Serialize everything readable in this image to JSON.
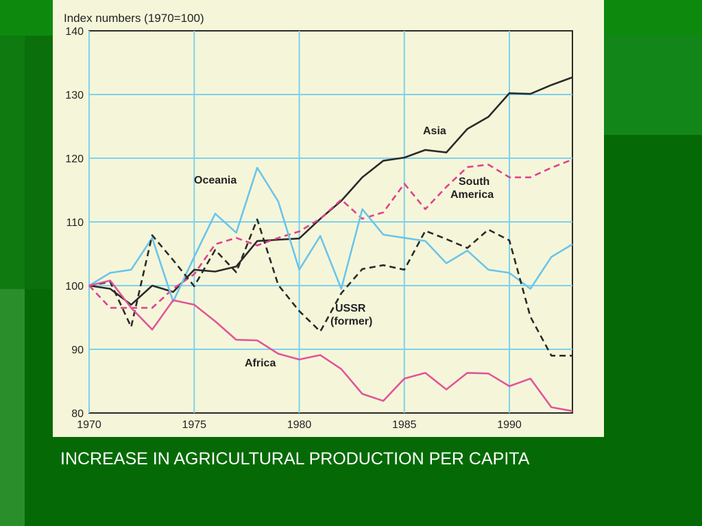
{
  "caption": "INCREASE IN AGRICULTURAL PRODUCTION PER CAPITA",
  "colors": {
    "background": "#0b6b0b",
    "panel": "#f5f6d9",
    "grid": "#7fd0ee",
    "asia": "#2a2a2a",
    "south_america": "#e0408e",
    "oceania": "#6cc4ea",
    "ussr": "#2a2a2a",
    "africa": "#e0559a"
  },
  "chart_data": {
    "type": "line",
    "title": "",
    "ylabel": "Index numbers (1970=100)",
    "xlabel": "",
    "xlim": [
      1970,
      1993
    ],
    "ylim": [
      80,
      140
    ],
    "grid": true,
    "x_ticks": [
      "1970",
      "1975",
      "1980",
      "1985",
      "1990"
    ],
    "y_ticks": [
      "80",
      "90",
      "100",
      "110",
      "120",
      "130",
      "140"
    ],
    "x": [
      1970,
      1971,
      1972,
      1973,
      1974,
      1975,
      1976,
      1977,
      1978,
      1979,
      1980,
      1981,
      1982,
      1983,
      1984,
      1985,
      1986,
      1987,
      1988,
      1989,
      1990,
      1991,
      1992,
      1993
    ],
    "series": [
      {
        "name": "Asia",
        "style": "solid",
        "color": "#2a2a2a",
        "values": [
          100,
          99.5,
          97,
          100,
          99,
          102.5,
          102.2,
          103,
          107,
          107.2,
          107.4,
          110.5,
          113.3,
          117,
          119.6,
          120.1,
          121.3,
          120.9,
          124.6,
          126.5,
          130.2,
          130.1,
          131.5,
          132.7
        ]
      },
      {
        "name": "South America",
        "style": "dashed",
        "color": "#e0408e",
        "values": [
          100,
          96.5,
          96.5,
          96.5,
          99.5,
          101.8,
          106.5,
          107.5,
          106.3,
          107.5,
          108.5,
          110.5,
          113.5,
          110.5,
          111.5,
          116,
          112,
          115.5,
          118.6,
          119,
          117,
          117,
          118.5,
          119.8
        ]
      },
      {
        "name": "Oceania",
        "style": "solid",
        "color": "#6cc4ea",
        "values": [
          100,
          102,
          102.5,
          107.5,
          97.5,
          104.5,
          111.3,
          108.3,
          118.5,
          113.2,
          102.5,
          107.8,
          99.5,
          112,
          108,
          107.5,
          107,
          103.5,
          105.5,
          102.5,
          102,
          99.5,
          104.5,
          106.5
        ]
      },
      {
        "name": "USSR (former)",
        "style": "dashed",
        "color": "#2a2a2a",
        "values": [
          100,
          100.6,
          93.5,
          107.9,
          104,
          99.9,
          105.6,
          102.1,
          110.4,
          100.1,
          96,
          92.8,
          98.8,
          102.6,
          103.2,
          102.5,
          108.6,
          107.3,
          105.9,
          108.8,
          107.1,
          95.1,
          89,
          89
        ]
      },
      {
        "name": "Africa",
        "style": "solid",
        "color": "#e0559a",
        "values": [
          100,
          100.8,
          96.5,
          93.1,
          97.7,
          97,
          94.4,
          91.5,
          91.4,
          89.3,
          88.4,
          89.1,
          86.9,
          83,
          81.9,
          85.4,
          86.3,
          83.7,
          86.3,
          86.2,
          84.2,
          85.4,
          80.9,
          80.3
        ]
      }
    ],
    "annotations": [
      {
        "text": "Asia",
        "series": "Asia"
      },
      {
        "text": "South",
        "series": "South America"
      },
      {
        "text": "America",
        "series": "South America"
      },
      {
        "text": "Oceania",
        "series": "Oceania"
      },
      {
        "text": "USSR",
        "series": "USSR (former)"
      },
      {
        "text": "(former)",
        "series": "USSR (former)"
      },
      {
        "text": "Africa",
        "series": "Africa"
      }
    ]
  }
}
